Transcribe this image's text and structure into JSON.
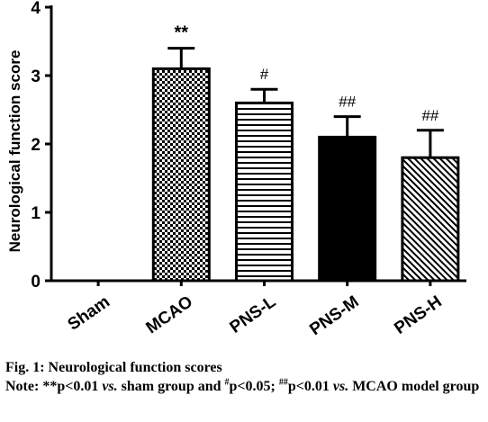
{
  "chart_data": {
    "type": "bar",
    "categories": [
      "Sham",
      "MCAO",
      "PNS-L",
      "PNS-M",
      "PNS-H"
    ],
    "values": [
      0,
      3.1,
      2.6,
      2.1,
      1.8
    ],
    "errors": [
      0,
      0.3,
      0.2,
      0.3,
      0.4
    ],
    "significance": [
      "",
      "**",
      "#",
      "##",
      "##"
    ],
    "ylabel": "Neurological function score",
    "xlabel": "",
    "ylim": [
      0,
      4
    ],
    "yticks": [
      0,
      1,
      2,
      3,
      4
    ],
    "patterns": [
      "none",
      "checker",
      "horizontal-lines",
      "solid",
      "diagonal-lines"
    ],
    "colors": {
      "bar_fill": "#ffffff",
      "solid_fill": "#000000",
      "axis": "#000000"
    }
  },
  "caption": {
    "title": "Fig. 1: Neurological function scores",
    "note_prefix": "Note: **p<0.01 ",
    "vs1": "vs.",
    "note_mid1": " sham group and ",
    "hash1": "#",
    "note_mid2": "p<0.05; ",
    "hash2": "##",
    "note_mid3": "p<0.01 ",
    "vs2": "vs.",
    "note_end": " MCAO model group"
  }
}
